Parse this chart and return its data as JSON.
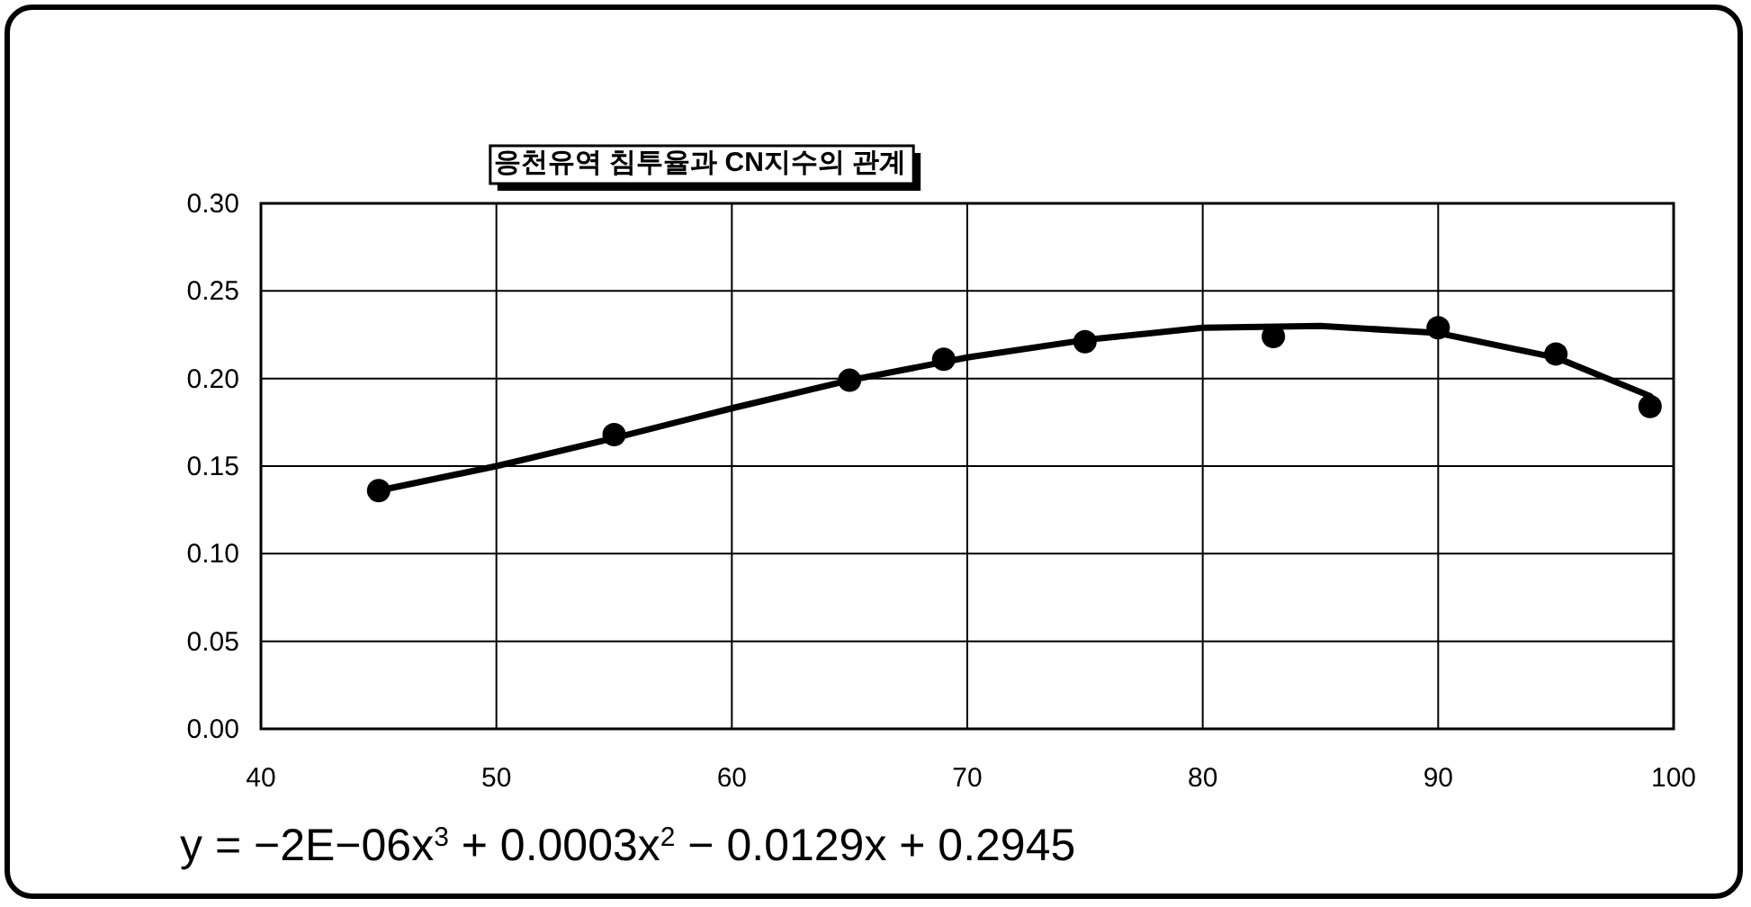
{
  "chart_data": {
    "type": "scatter",
    "title": "응천유역 침투율과 CN지수의 관계",
    "annotations": [
      "y = −2E−06x$^{3}$ + 0.0003x$^{2}$ − 0.0129x + 0.2945"
    ],
    "xlim": [
      40,
      100
    ],
    "xticks": [
      40,
      50,
      60,
      70,
      80,
      90,
      100
    ],
    "ylim": [
      0,
      0.3
    ],
    "yticks": [
      {
        "value": 0,
        "label": "0.00"
      },
      {
        "value": 0.05,
        "label": "0.05"
      },
      {
        "value": 0.1,
        "label": "0.10"
      },
      {
        "value": 0.15,
        "label": "0.15"
      },
      {
        "value": 0.2,
        "label": "0.20"
      },
      {
        "value": 0.25,
        "label": "0.25"
      },
      {
        "value": 0.3,
        "label": "0.30"
      }
    ],
    "grid": true,
    "series": [
      {
        "type": "scatter",
        "marker": "circle",
        "color": "#000000",
        "x": [
          45,
          55,
          65,
          69,
          75,
          83,
          90,
          95,
          99
        ],
        "values": [
          0.136,
          0.168,
          0.199,
          0.211,
          0.221,
          0.224,
          0.229,
          0.214,
          0.184
        ]
      },
      {
        "type": "line",
        "color": "#000000",
        "x": [
          45,
          50,
          55,
          60,
          65,
          70,
          75,
          80,
          85,
          90,
          95,
          99
        ],
        "values": [
          0.136,
          0.15,
          0.166,
          0.183,
          0.199,
          0.212,
          0.222,
          0.229,
          0.23,
          0.226,
          0.212,
          0.19
        ]
      }
    ]
  }
}
